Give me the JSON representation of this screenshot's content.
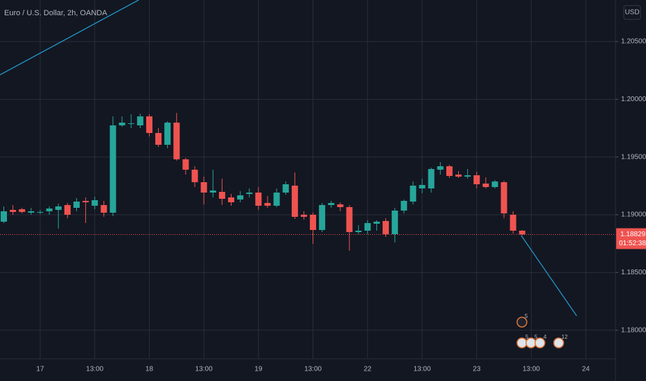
{
  "chart_data": {
    "type": "candlestick",
    "title": "Euro / U.S. Dollar, 2h, OANDA",
    "currency": "USD",
    "categories": [
      null,
      null,
      null,
      null,
      "17",
      null,
      null,
      null,
      null,
      null,
      "13:00",
      null,
      null,
      null,
      null,
      null,
      "18",
      null,
      null,
      null,
      null,
      null,
      "13:00",
      null,
      null,
      null,
      null,
      null,
      "19",
      null,
      null,
      null,
      null,
      null,
      "13:00",
      null,
      null,
      null,
      null,
      null,
      "22",
      null,
      null,
      null,
      null,
      null,
      "13:00",
      null,
      null,
      null,
      null,
      null,
      "23",
      null,
      null,
      null,
      null,
      null,
      "13:00",
      null,
      null,
      null,
      null,
      null,
      "24"
    ],
    "open": [
      1.1894,
      1.19042,
      1.19048,
      1.19018,
      1.19018,
      1.1903,
      1.19042,
      1.19084,
      1.1906,
      1.1912,
      1.19078,
      1.19084,
      1.19018,
      1.19774,
      1.19786,
      1.19774,
      1.19852,
      1.19708,
      1.19606,
      1.19798,
      1.1948,
      1.1939,
      1.19282,
      1.19192,
      1.19198,
      1.1915,
      1.19132,
      1.1918,
      1.19192,
      1.19102,
      1.19078,
      1.19192,
      1.19252,
      1.19,
      1.19,
      1.18868,
      1.19084,
      1.1909,
      1.19066,
      1.1885,
      1.18862,
      1.18922,
      1.18946,
      1.18832,
      1.19036,
      1.19114,
      1.19228,
      1.19228,
      1.1939,
      1.1942,
      1.19348,
      1.1933,
      1.19342,
      1.1927,
      1.1924,
      1.19282,
      1.19,
      1.18862,
      null,
      null,
      null,
      null,
      null,
      null,
      null
    ],
    "high": [
      1.19072,
      1.19084,
      1.1906,
      1.1906,
      1.19042,
      1.19072,
      1.19096,
      1.19102,
      1.19144,
      1.1915,
      1.19156,
      1.1912,
      1.19852,
      1.19852,
      1.1987,
      1.19876,
      1.1987,
      1.1975,
      1.1981,
      1.19882,
      1.19492,
      1.1942,
      1.1933,
      1.1939,
      1.19312,
      1.1918,
      1.19204,
      1.19228,
      1.1924,
      1.19162,
      1.19228,
      1.19288,
      1.19366,
      1.1903,
      1.19018,
      1.19102,
      1.1912,
      1.19108,
      1.19084,
      1.1891,
      1.18952,
      1.18952,
      1.1897,
      1.1906,
      1.19132,
      1.19288,
      1.19312,
      1.19408,
      1.19456,
      1.19432,
      1.19378,
      1.19396,
      1.19372,
      1.19324,
      1.193,
      1.19294,
      1.1903,
      1.18868,
      null,
      null,
      null,
      null,
      null,
      null,
      null
    ],
    "low": [
      1.18928,
      1.19,
      1.19012,
      1.19,
      1.19006,
      1.19,
      1.1888,
      1.1897,
      1.1903,
      1.18928,
      1.19048,
      1.18982,
      1.18988,
      1.19762,
      1.1975,
      1.1975,
      1.19678,
      1.19588,
      1.19576,
      1.19468,
      1.19348,
      1.1924,
      1.1909,
      1.1915,
      1.19084,
      1.19078,
      1.19108,
      1.1915,
      1.19042,
      1.1906,
      1.19066,
      1.19174,
      1.18964,
      1.18958,
      1.18748,
      1.1885,
      1.1906,
      1.1903,
      1.18688,
      1.18832,
      1.18832,
      1.18862,
      1.18808,
      1.1876,
      1.19012,
      1.1909,
      1.19186,
      1.19192,
      1.19348,
      1.19318,
      1.19318,
      1.19312,
      1.19228,
      1.19228,
      1.19228,
      1.1897,
      1.18838,
      1.1882,
      null,
      null,
      null,
      null,
      null,
      null,
      null
    ],
    "close": [
      1.1903,
      1.19024,
      1.19024,
      1.1903,
      1.19024,
      1.19054,
      1.19072,
      1.19,
      1.19114,
      1.19108,
      1.19126,
      1.19018,
      1.19774,
      1.19798,
      1.19792,
      1.19852,
      1.19708,
      1.19606,
      1.19798,
      1.1948,
      1.1939,
      1.19282,
      1.19192,
      1.1921,
      1.19138,
      1.19108,
      1.19168,
      1.19192,
      1.19078,
      1.19078,
      1.19192,
      1.19264,
      1.18982,
      1.18982,
      1.18868,
      1.19084,
      1.19102,
      1.19066,
      1.1885,
      1.18862,
      1.18928,
      1.1894,
      1.18832,
      1.19036,
      1.1912,
      1.19252,
      1.19258,
      1.19396,
      1.1942,
      1.19336,
      1.1933,
      1.19342,
      1.19264,
      1.1924,
      1.19288,
      1.19012,
      1.18862,
      1.18829,
      null,
      null,
      null,
      null,
      null,
      null,
      null
    ],
    "up_color": "#26a69a",
    "down_color": "#ef5350",
    "last_price": 1.18829,
    "countdown": "01:52:38",
    "ylim": [
      1.17752,
      1.2086
    ],
    "yticks": [
      {
        "value": 1.18,
        "label": "1.18000"
      },
      {
        "value": 1.185,
        "label": "1.18500"
      },
      {
        "value": 1.19,
        "label": "1.19000"
      },
      {
        "value": 1.195,
        "label": "1.19500"
      },
      {
        "value": 1.2,
        "label": "1.20000"
      },
      {
        "value": 1.205,
        "label": "1.20500"
      }
    ],
    "grid": true,
    "event_badges": [
      "5",
      "5",
      "5",
      "4",
      "12"
    ]
  }
}
